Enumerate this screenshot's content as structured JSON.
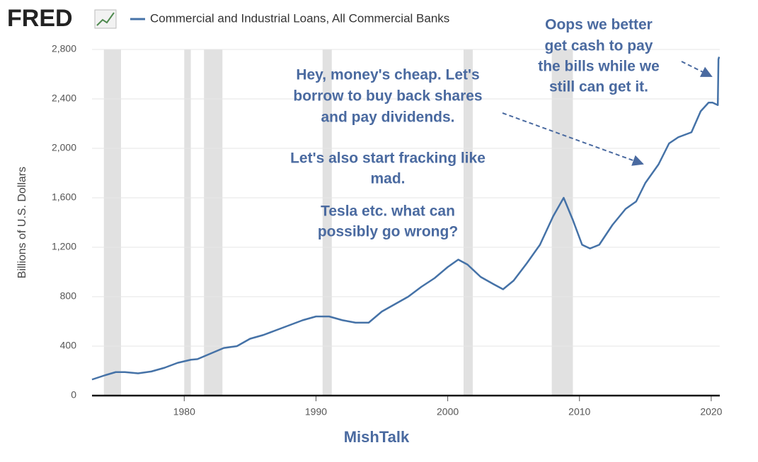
{
  "chart_data": {
    "type": "line",
    "logo": "FRED",
    "ylabel": "Billions of U.S. Dollars",
    "source": "MishTalk",
    "series": [
      {
        "name": "Commercial and Industrial Loans, All Commercial Banks",
        "color": "#4572a7",
        "x": [
          1973,
          1974,
          1974.8,
          1975.5,
          1976.5,
          1977.5,
          1978.5,
          1979.5,
          1980.5,
          1981,
          1982,
          1983,
          1984,
          1985,
          1986,
          1987,
          1988,
          1989,
          1990,
          1991,
          1992,
          1993,
          1994,
          1995,
          1996,
          1997,
          1998,
          1999,
          2000,
          2000.8,
          2001.5,
          2002.5,
          2003.5,
          2004.2,
          2005,
          2006,
          2007,
          2008,
          2008.8,
          2009.5,
          2010.2,
          2010.8,
          2011.5,
          2012.5,
          2013.5,
          2014.3,
          2015,
          2016,
          2016.8,
          2017.5,
          2018.5,
          2019.2,
          2019.8,
          2020.1,
          2020.5,
          2020.55,
          2020.6
        ],
        "values": [
          130,
          165,
          190,
          190,
          180,
          195,
          225,
          265,
          290,
          295,
          340,
          385,
          400,
          460,
          490,
          530,
          570,
          610,
          640,
          640,
          610,
          590,
          590,
          680,
          740,
          800,
          880,
          950,
          1040,
          1100,
          1060,
          960,
          900,
          860,
          930,
          1070,
          1220,
          1450,
          1600,
          1420,
          1220,
          1190,
          1220,
          1380,
          1510,
          1570,
          1720,
          1870,
          2040,
          2090,
          2130,
          2300,
          2370,
          2370,
          2350,
          2720,
          2740
        ]
      }
    ],
    "recessions": [
      [
        1973.9,
        1975.2
      ],
      [
        1980.0,
        1980.5
      ],
      [
        1981.5,
        1982.9
      ],
      [
        1990.5,
        1991.2
      ],
      [
        2001.2,
        2001.9
      ],
      [
        2007.9,
        2009.5
      ]
    ],
    "recession_color": "#e1e1e1",
    "xlim": [
      1973,
      2020.65
    ],
    "xticks": [
      1980,
      1990,
      2000,
      2010,
      2020
    ],
    "ylim": [
      0,
      2800
    ],
    "yticks": [
      0,
      400,
      800,
      {
        "value": 1200,
        "label": "1,200"
      },
      {
        "value": 1600,
        "label": "1,600"
      },
      {
        "value": 2000,
        "label": "2,000"
      },
      {
        "value": 2400,
        "label": "2,400"
      },
      {
        "value": 2800,
        "label": "2,800"
      }
    ],
    "grid": true,
    "annotations": [
      {
        "lines": [
          "Hey, money's cheap. Let's",
          "borrow to buy back shares",
          "and pay dividends.",
          "Let's also start fracking like",
          "mad.",
          "Tesla etc. what can",
          "possibly go wrong?"
        ]
      },
      {
        "lines": [
          "Oops we better",
          "get cash to pay",
          "the bills while we",
          "still can get it."
        ]
      }
    ]
  }
}
